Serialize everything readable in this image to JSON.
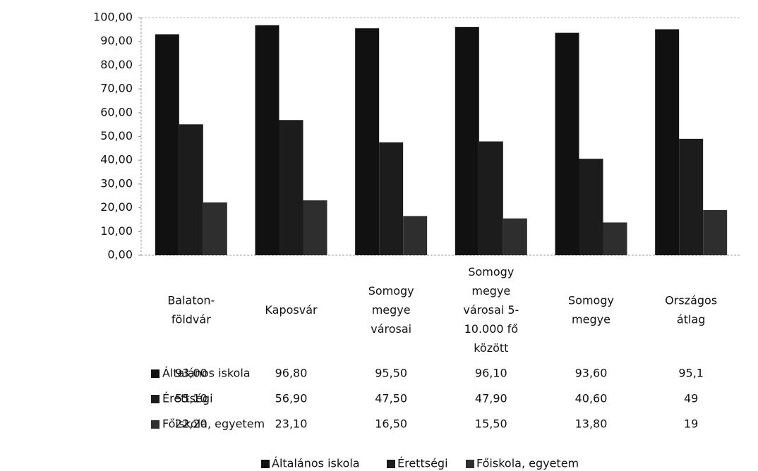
{
  "chart_data": {
    "type": "bar",
    "categories": [
      [
        "Balaton-",
        "földvár"
      ],
      [
        "Kaposvár"
      ],
      [
        "Somogy",
        "megye",
        "városai"
      ],
      [
        "Somogy",
        "megye",
        "városai 5-",
        "10.000 fő",
        "között"
      ],
      [
        "Somogy",
        "megye"
      ],
      [
        "Országos",
        "átlag"
      ]
    ],
    "series": [
      {
        "name": "Általános iskola",
        "color": "#111111",
        "values": [
          93.0,
          96.8,
          95.5,
          96.1,
          93.6,
          95.1
        ],
        "value_labels": [
          "93,00",
          "96,80",
          "95,50",
          "96,10",
          "93,60",
          "95,1"
        ]
      },
      {
        "name": "Érettségi",
        "color": "#1c1c1c",
        "values": [
          55.1,
          56.9,
          47.5,
          47.9,
          40.6,
          49
        ],
        "value_labels": [
          "55,10",
          "56,90",
          "47,50",
          "47,90",
          "40,60",
          "49"
        ]
      },
      {
        "name": "Főiskola, egyetem",
        "color": "#2e2e2e",
        "values": [
          22.2,
          23.1,
          16.5,
          15.5,
          13.8,
          19
        ],
        "value_labels": [
          "22,20",
          "23,10",
          "16,50",
          "15,50",
          "13,80",
          "19"
        ]
      }
    ],
    "ylim": [
      0,
      100
    ],
    "yticks": [
      {
        "value": 0,
        "label": "0,00"
      },
      {
        "value": 10,
        "label": "10,00"
      },
      {
        "value": 20,
        "label": "20,00"
      },
      {
        "value": 30,
        "label": "30,00"
      },
      {
        "value": 40,
        "label": "40,00"
      },
      {
        "value": 50,
        "label": "50,00"
      },
      {
        "value": 60,
        "label": "60,00"
      },
      {
        "value": 70,
        "label": "70,00"
      },
      {
        "value": 80,
        "label": "80,00"
      },
      {
        "value": 90,
        "label": "90,00"
      },
      {
        "value": 100,
        "label": "100,00"
      }
    ],
    "grid": false,
    "legend": "bottom",
    "data_table": true
  }
}
